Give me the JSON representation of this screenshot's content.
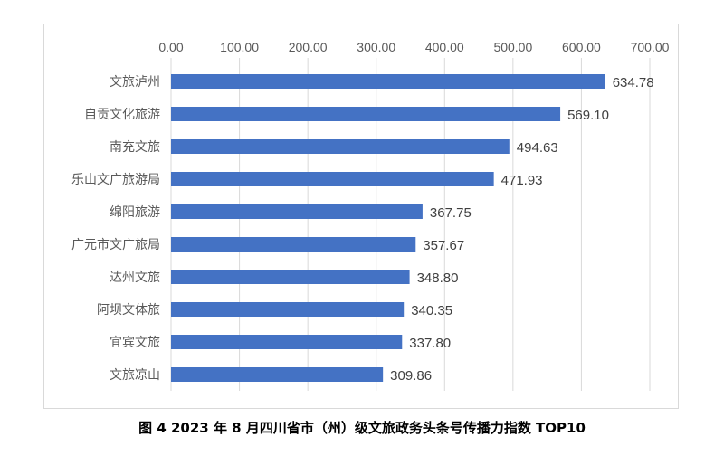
{
  "caption": "图 4  2023 年 8 月四川省市（州）级文旅政务头条号传播力指数 TOP10",
  "colors": {
    "bar": "#4472C4",
    "grid": "#d9d9d9",
    "text": "#595959"
  },
  "chart_data": {
    "type": "bar",
    "orientation": "horizontal",
    "title": "",
    "xlabel": "",
    "ylabel": "",
    "xlim": [
      0,
      700
    ],
    "ticks": [
      0,
      100,
      200,
      300,
      400,
      500,
      600,
      700
    ],
    "tick_labels": [
      "0.00",
      "100.00",
      "200.00",
      "300.00",
      "400.00",
      "500.00",
      "600.00",
      "700.00"
    ],
    "axis_position": "top",
    "grid": true,
    "categories": [
      "文旅泸州",
      "自贡文化旅游",
      "南充文旅",
      "乐山文广旅游局",
      "绵阳旅游",
      "广元市文广旅局",
      "达州文旅",
      "阿坝文体旅",
      "宜宾文旅",
      "文旅凉山"
    ],
    "values": [
      634.78,
      569.1,
      494.63,
      471.93,
      367.75,
      357.67,
      348.8,
      340.35,
      337.8,
      309.86
    ],
    "data_labels": [
      "634.78",
      "569.10",
      "494.63",
      "471.93",
      "367.75",
      "357.67",
      "348.80",
      "340.35",
      "337.80",
      "309.86"
    ]
  }
}
